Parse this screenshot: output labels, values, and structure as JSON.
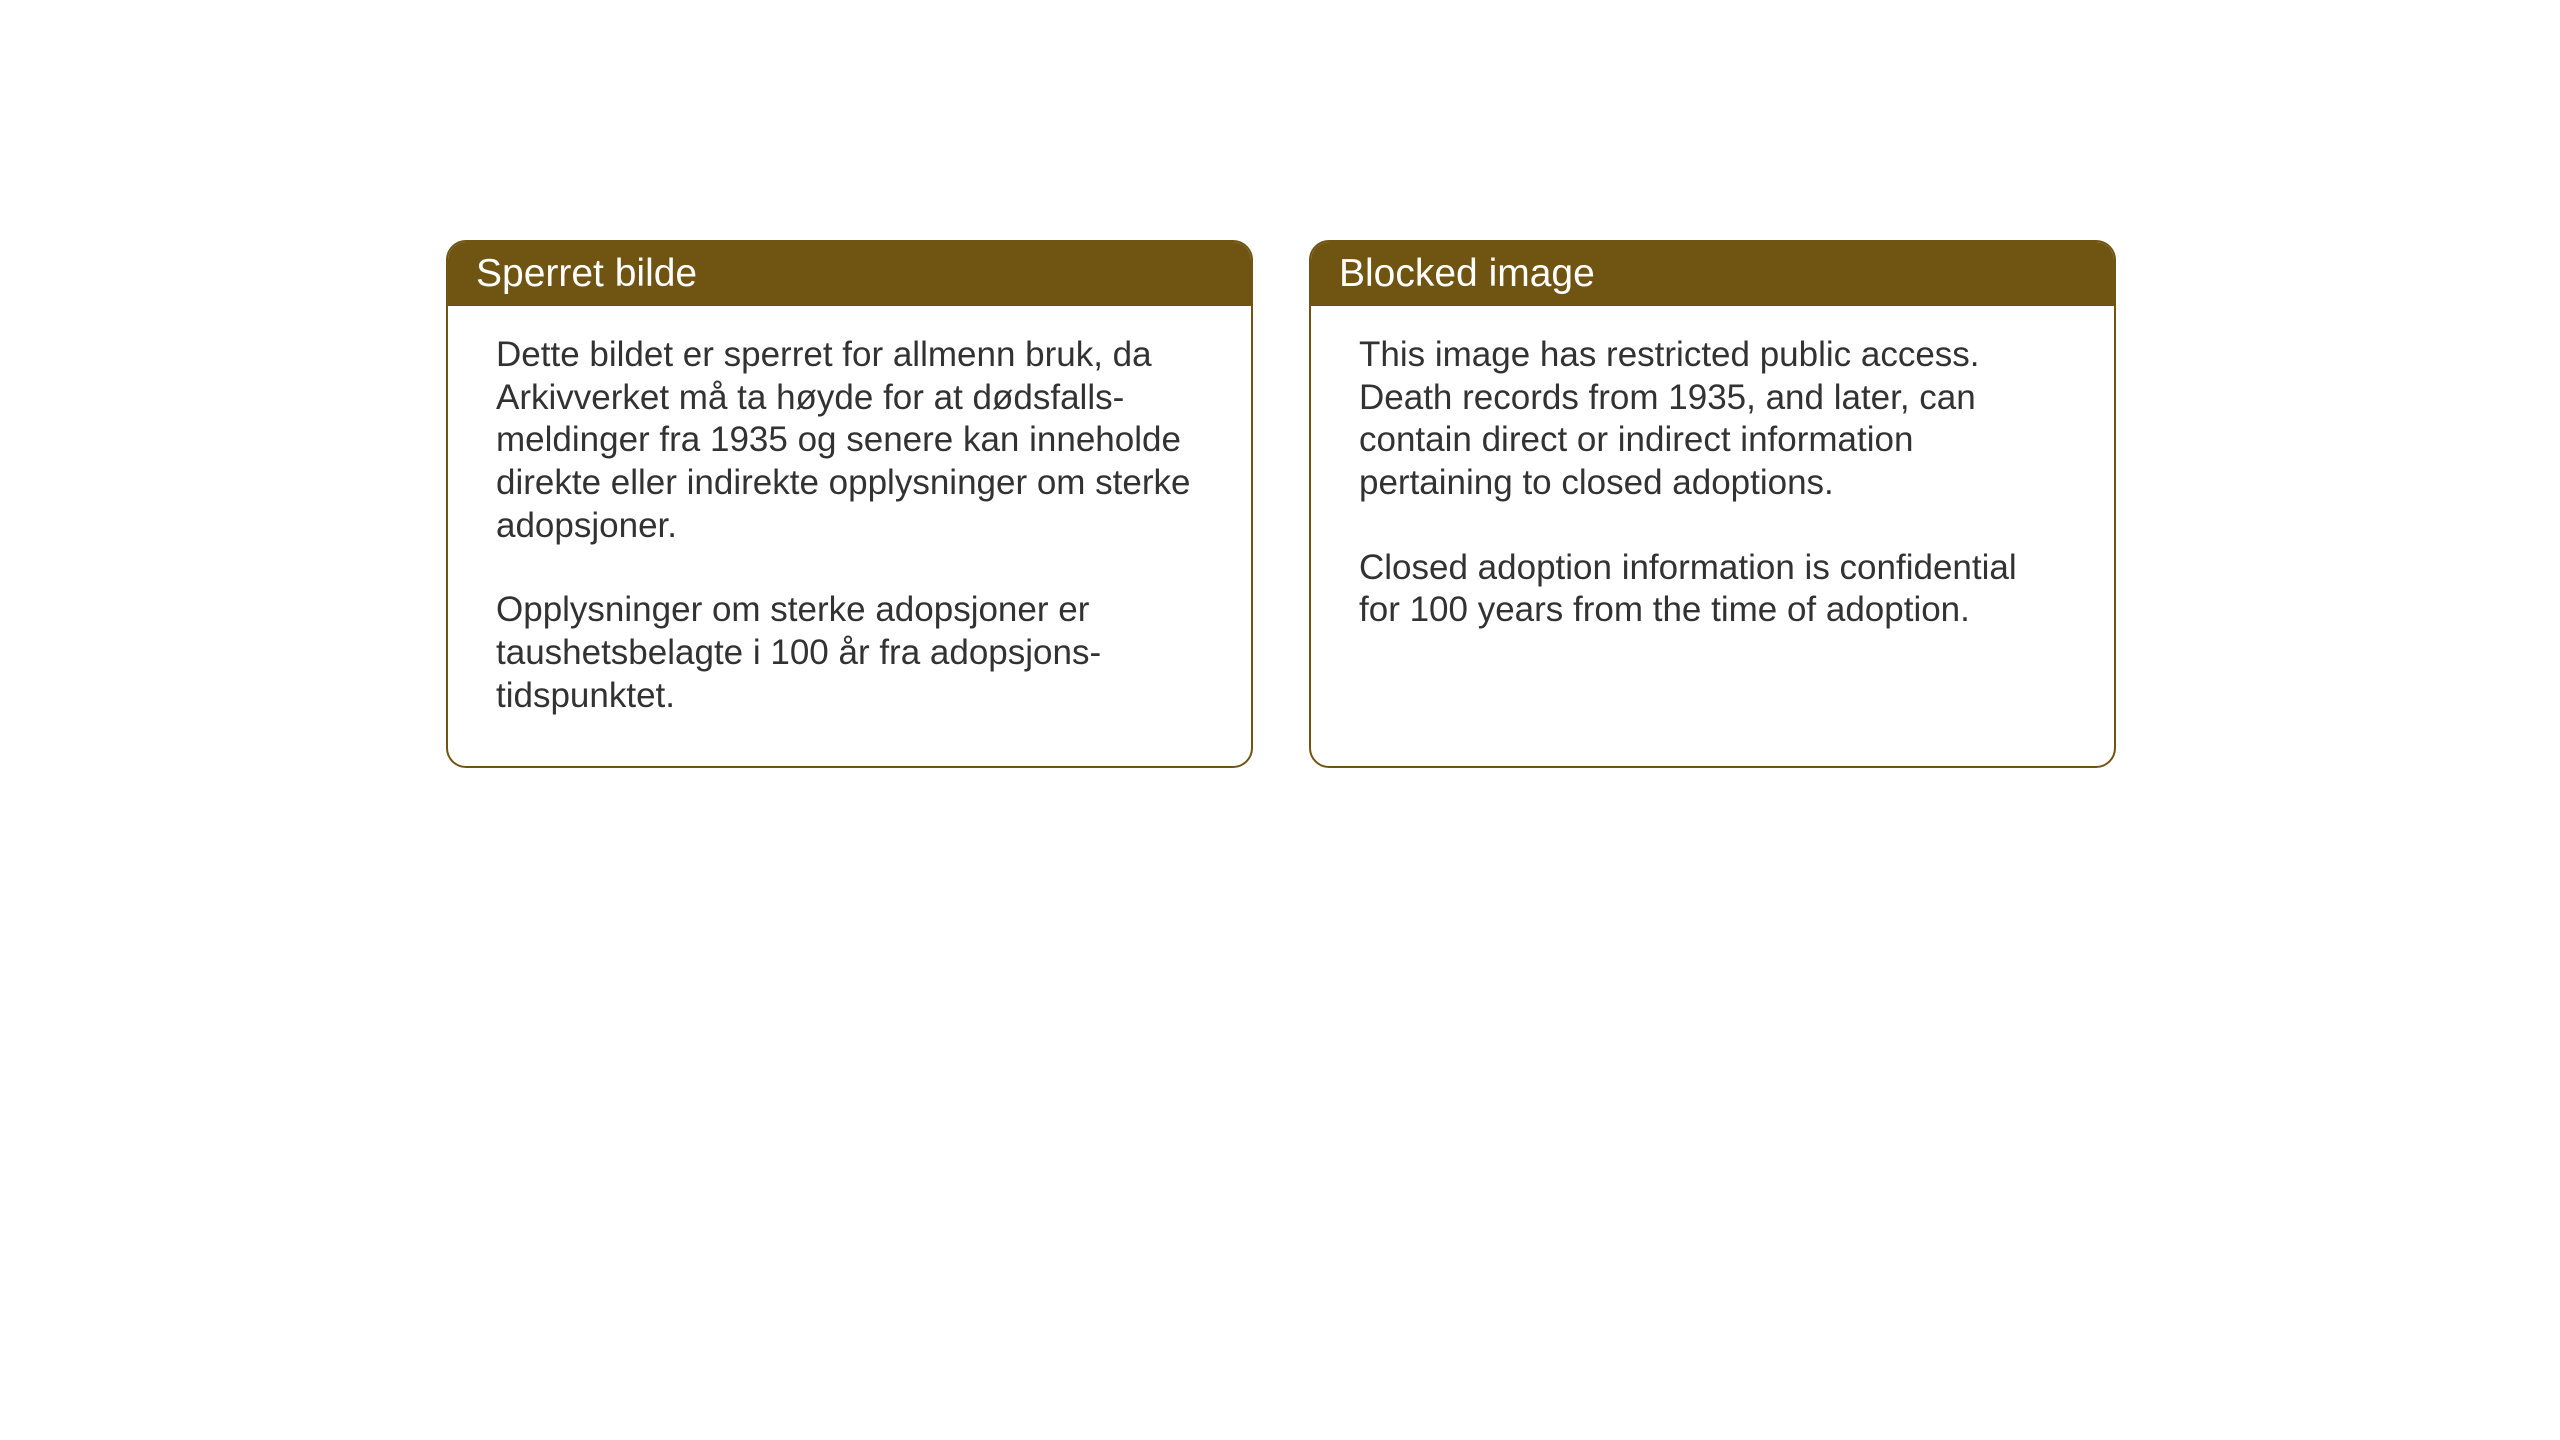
{
  "layout": {
    "background_color": "#ffffff",
    "card_border_color": "#6f5412",
    "card_border_width": 2,
    "card_border_radius": 20,
    "header_background_color": "#6f5412",
    "header_text_color": "#ffffff",
    "body_text_color": "#323232",
    "header_font_size": 39,
    "body_font_size": 35
  },
  "cards": [
    {
      "title": "Sperret bilde",
      "paragraph1": "Dette bildet er sperret for allmenn bruk, da Arkivverket må ta høyde for at dødsfalls-meldinger fra 1935 og senere kan inneholde direkte eller indirekte opplysninger om sterke adopsjoner.",
      "paragraph2": "Opplysninger om sterke adopsjoner er taushetsbelagte i 100 år fra adopsjons-tidspunktet."
    },
    {
      "title": "Blocked image",
      "paragraph1": "This image has restricted public access. Death records from 1935, and later, can contain direct or indirect information pertaining to closed adoptions.",
      "paragraph2": "Closed adoption information is confidential for 100 years from the time of adoption."
    }
  ]
}
